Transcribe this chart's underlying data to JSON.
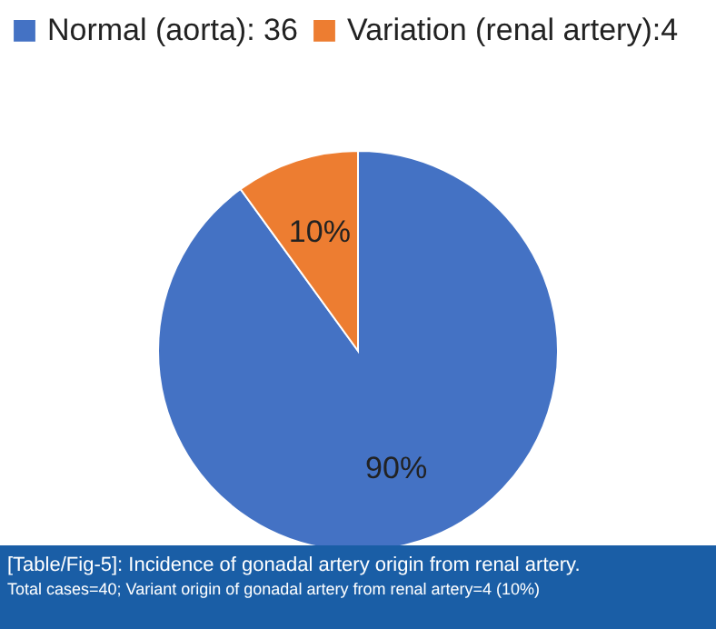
{
  "chart_data": {
    "type": "pie",
    "categories": [
      "Normal (aorta): 36",
      "Variation (renal artery):4"
    ],
    "values": [
      90,
      10
    ],
    "colors": [
      "#4472c4",
      "#ed7d31"
    ],
    "value_labels": [
      "90%",
      "10%"
    ],
    "legend": "top",
    "annotations": [
      "[Table/Fig-5]: Incidence of gonadal artery origin from renal artery.",
      "Total cases=40; Variant origin of gonadal artery from renal artery=4 (10%)"
    ]
  }
}
